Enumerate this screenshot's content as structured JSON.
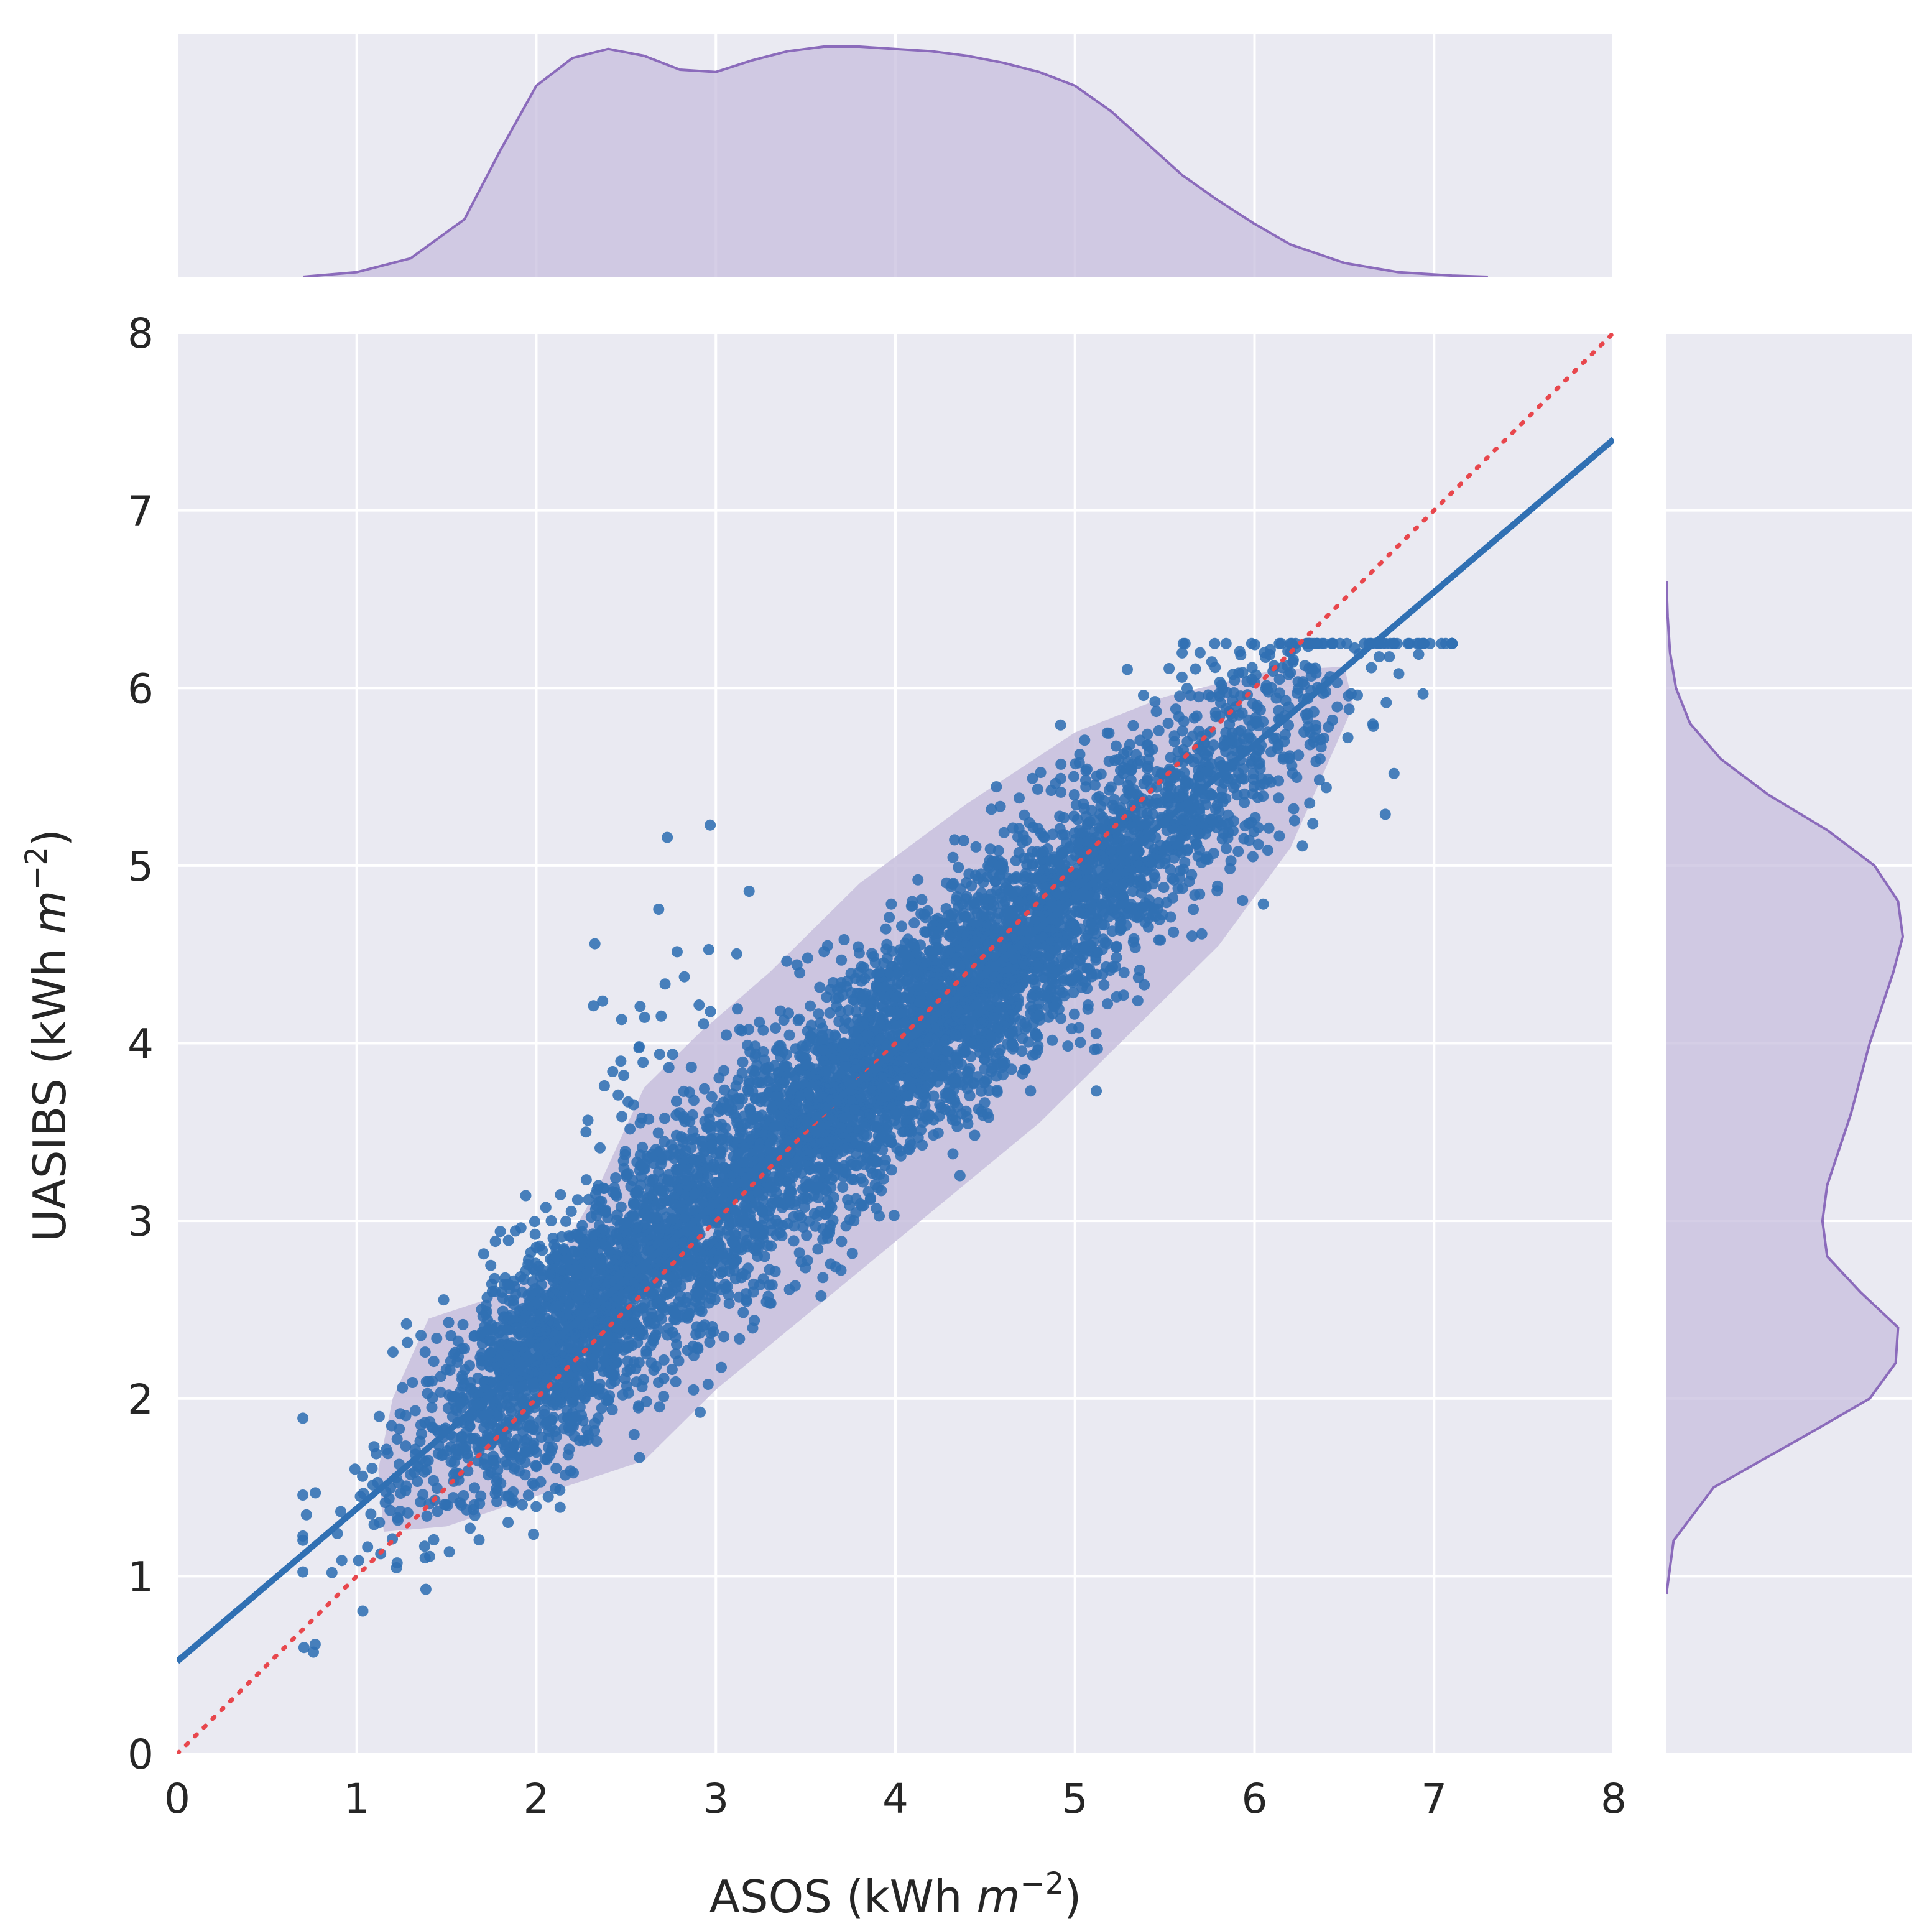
{
  "chart_data": {
    "type": "scatter",
    "title": "",
    "xlabel": {
      "pre": "ASOS (kWh ",
      "var": "m",
      "sup": "−2",
      "post": ")"
    },
    "ylabel": {
      "pre": "UASIBS (kWh ",
      "var": "m",
      "sup": "−2",
      "post": ")"
    },
    "xlim": [
      0,
      8
    ],
    "ylim": [
      0,
      8
    ],
    "x_ticks": [
      "0",
      "1",
      "2",
      "3",
      "4",
      "5",
      "6",
      "7",
      "8"
    ],
    "y_ticks": [
      "0",
      "1",
      "2",
      "3",
      "4",
      "5",
      "6",
      "7",
      "8"
    ],
    "grid": true,
    "background_color": "#EAEAF2",
    "point_color": "#3070B3",
    "fit_line": {
      "intercept": 0.52,
      "slope": 0.86,
      "color": "#3070B3"
    },
    "identity_line": {
      "intercept": 0,
      "slope": 1,
      "style": "dotted",
      "color": "#E8474D"
    },
    "density_fill_color": "#C7BEDD",
    "density_line_color": "#8B6BBB",
    "sample": {
      "approx_points": 6500,
      "x_range": [
        0.7,
        7.1
      ],
      "center": [
        3.9,
        3.9
      ]
    },
    "marginal_x_density": {
      "x": [
        0.7,
        1.0,
        1.3,
        1.6,
        1.8,
        2.0,
        2.2,
        2.4,
        2.6,
        2.8,
        3.0,
        3.2,
        3.4,
        3.6,
        3.8,
        4.0,
        4.2,
        4.4,
        4.6,
        4.8,
        5.0,
        5.2,
        5.4,
        5.6,
        5.8,
        6.0,
        6.2,
        6.5,
        6.8,
        7.1,
        7.3
      ],
      "density": [
        0.0,
        0.02,
        0.08,
        0.25,
        0.55,
        0.83,
        0.95,
        0.99,
        0.96,
        0.9,
        0.89,
        0.94,
        0.98,
        1.0,
        1.0,
        0.99,
        0.98,
        0.96,
        0.93,
        0.89,
        0.83,
        0.72,
        0.58,
        0.44,
        0.33,
        0.23,
        0.14,
        0.06,
        0.02,
        0.005,
        0.0
      ]
    },
    "marginal_y_density": {
      "y": [
        0.9,
        1.2,
        1.5,
        1.8,
        2.0,
        2.2,
        2.4,
        2.6,
        2.8,
        3.0,
        3.2,
        3.4,
        3.6,
        3.8,
        4.0,
        4.2,
        4.4,
        4.6,
        4.8,
        5.0,
        5.2,
        5.4,
        5.6,
        5.8,
        6.0,
        6.2,
        6.4,
        6.6
      ],
      "density": [
        0.0,
        0.03,
        0.2,
        0.6,
        0.86,
        0.97,
        0.98,
        0.82,
        0.68,
        0.66,
        0.68,
        0.73,
        0.78,
        0.82,
        0.86,
        0.91,
        0.96,
        1.0,
        0.98,
        0.88,
        0.68,
        0.43,
        0.23,
        0.1,
        0.04,
        0.015,
        0.005,
        0.0
      ]
    }
  }
}
